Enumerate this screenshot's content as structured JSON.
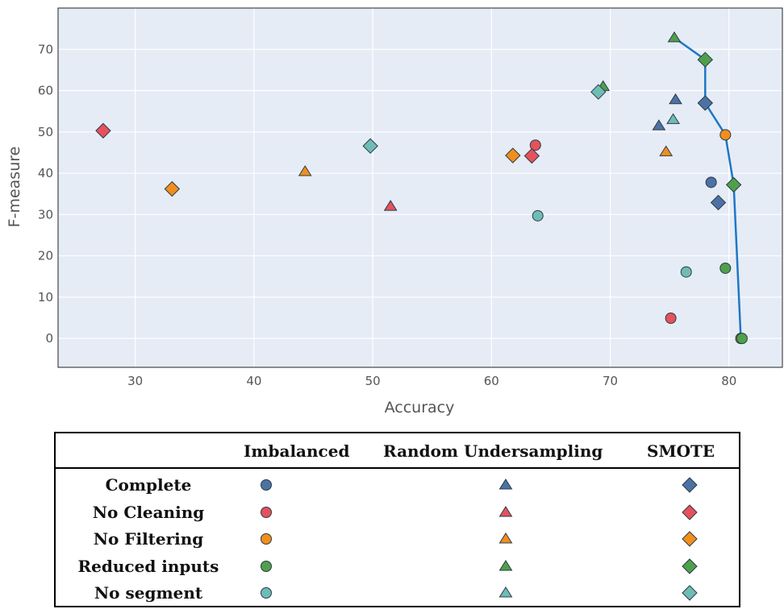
{
  "chart_data": {
    "type": "scatter",
    "title": "",
    "xlabel": "Accuracy",
    "ylabel": "F-measure",
    "xlim": [
      23.5,
      84.5
    ],
    "ylim": [
      -7,
      80
    ],
    "xticks": [
      30,
      40,
      50,
      60,
      70,
      80
    ],
    "yticks": [
      0,
      10,
      20,
      30,
      40,
      50,
      60,
      70
    ],
    "grid": true,
    "plot_background": "#e5ecf6",
    "colors": {
      "Complete": "#4c72a4",
      "No Cleaning": "#e5525c",
      "No Filtering": "#f28e1c",
      "Reduced inputs": "#4ea04a",
      "No segment": "#6fbcb4"
    },
    "marker_shapes": {
      "Imbalanced": "circle",
      "Random Undersampling": "triangle",
      "SMOTE": "diamond"
    },
    "series": [
      {
        "group": "Complete",
        "sampling": "Imbalanced",
        "points": [
          [
            78.5,
            37.8
          ]
        ]
      },
      {
        "group": "Complete",
        "sampling": "Random Undersampling",
        "points": [
          [
            74.1,
            51.5
          ],
          [
            75.5,
            57.8
          ]
        ]
      },
      {
        "group": "Complete",
        "sampling": "SMOTE",
        "points": [
          [
            78.0,
            57.0
          ],
          [
            79.1,
            32.9
          ]
        ]
      },
      {
        "group": "No Cleaning",
        "sampling": "Imbalanced",
        "points": [
          [
            63.7,
            46.8
          ],
          [
            75.1,
            4.9
          ]
        ]
      },
      {
        "group": "No Cleaning",
        "sampling": "Random Undersampling",
        "points": [
          [
            51.5,
            32.0
          ]
        ]
      },
      {
        "group": "No Cleaning",
        "sampling": "SMOTE",
        "points": [
          [
            27.3,
            50.3
          ],
          [
            63.4,
            44.2
          ]
        ]
      },
      {
        "group": "No Filtering",
        "sampling": "Imbalanced",
        "points": [
          [
            79.7,
            49.3
          ],
          [
            81.0,
            0.0
          ]
        ]
      },
      {
        "group": "No Filtering",
        "sampling": "Random Undersampling",
        "points": [
          [
            44.3,
            40.4
          ],
          [
            74.7,
            45.2
          ]
        ]
      },
      {
        "group": "No Filtering",
        "sampling": "SMOTE",
        "points": [
          [
            33.1,
            36.2
          ],
          [
            61.8,
            44.3
          ]
        ]
      },
      {
        "group": "Reduced inputs",
        "sampling": "Imbalanced",
        "points": [
          [
            79.7,
            17.0
          ],
          [
            81.1,
            0.0
          ]
        ]
      },
      {
        "group": "Reduced inputs",
        "sampling": "Random Undersampling",
        "points": [
          [
            69.4,
            61.0
          ],
          [
            75.4,
            72.8
          ]
        ]
      },
      {
        "group": "Reduced inputs",
        "sampling": "SMOTE",
        "points": [
          [
            78.0,
            67.5
          ],
          [
            80.4,
            37.2
          ]
        ]
      },
      {
        "group": "No segment",
        "sampling": "Imbalanced",
        "points": [
          [
            63.9,
            29.7
          ],
          [
            76.4,
            16.1
          ]
        ]
      },
      {
        "group": "No segment",
        "sampling": "Random Undersampling",
        "points": [
          [
            75.3,
            53.0
          ]
        ]
      },
      {
        "group": "No segment",
        "sampling": "SMOTE",
        "points": [
          [
            49.8,
            46.6
          ],
          [
            69.0,
            59.7
          ]
        ]
      }
    ],
    "frontier_line": {
      "color": "#1f77c4",
      "points": [
        [
          75.4,
          72.8
        ],
        [
          78.0,
          67.5
        ],
        [
          78.0,
          57.0
        ],
        [
          79.7,
          49.3
        ],
        [
          80.4,
          37.2
        ],
        [
          81.0,
          0.0
        ]
      ]
    }
  },
  "legend": {
    "columns": [
      "Imbalanced",
      "Random Undersampling",
      "SMOTE"
    ],
    "rows": [
      "Complete",
      "No Cleaning",
      "No Filtering",
      "Reduced inputs",
      "No segment"
    ]
  }
}
